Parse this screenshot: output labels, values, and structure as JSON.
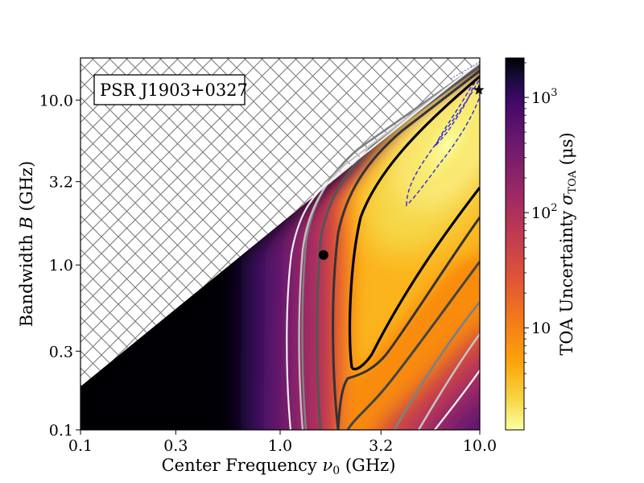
{
  "chart_data": {
    "type": "heatmap",
    "title": "",
    "annotation": "PSR J1903+0327",
    "xlabel": {
      "text": "Center Frequency ",
      "symbol": "ν",
      "sub": "0",
      "unit": " (GHz)"
    },
    "ylabel": {
      "text": "Bandwidth ",
      "symbol": "B",
      "unit": " (GHz)"
    },
    "xscale": "log",
    "yscale": "log",
    "xlim": [
      0.1,
      10.0
    ],
    "ylim": [
      0.1,
      18.0
    ],
    "xticks": [
      {
        "value": 0.1,
        "label": "0.1"
      },
      {
        "value": 0.3,
        "label": "0.3"
      },
      {
        "value": 1.0,
        "label": "1.0"
      },
      {
        "value": 3.2,
        "label": "3.2"
      },
      {
        "value": 10.0,
        "label": "10.0"
      }
    ],
    "yticks": [
      {
        "value": 0.1,
        "label": "0.1"
      },
      {
        "value": 0.3,
        "label": "0.3"
      },
      {
        "value": 1.0,
        "label": "1.0"
      },
      {
        "value": 3.2,
        "label": "3.2"
      },
      {
        "value": 10.0,
        "label": "10.0"
      }
    ],
    "colorbar": {
      "label": {
        "text": "TOA Uncertainty ",
        "symbol": "σ",
        "sub": "TOA",
        "unit": " (μs)"
      },
      "scale": "log",
      "colormap": "inferno_r",
      "range_us": [
        1.3,
        2200
      ],
      "ticks": [
        {
          "value": 10,
          "label": "10",
          "exp": ""
        },
        {
          "value": 100,
          "label": "10",
          "exp": "2"
        },
        {
          "value": 1000,
          "label": "10",
          "exp": "3"
        }
      ]
    },
    "excluded_region": "bandwidth exceeds twice the center frequency (B > 2ν0), hatched",
    "markers": [
      {
        "name": "current observation",
        "shape": "circle",
        "x": 1.65,
        "y": 1.15
      },
      {
        "name": "optimum",
        "shape": "star",
        "x": 9.9,
        "y": 11.5
      }
    ],
    "contours": [
      {
        "style": "dashed",
        "color": "#2a2adf",
        "label": "inner dashed contour"
      },
      {
        "style": "dashed",
        "color": "#2a2adf",
        "label": "outer dashed contour"
      },
      {
        "style": "solid",
        "color": "#000000",
        "label": "level 1"
      },
      {
        "style": "solid",
        "color": "#333333",
        "label": "level 2"
      },
      {
        "style": "solid",
        "color": "#444444",
        "label": "level 3"
      },
      {
        "style": "solid",
        "color": "#808080",
        "label": "level 4"
      },
      {
        "style": "solid",
        "color": "#c4c4c4",
        "label": "level 5"
      },
      {
        "style": "solid",
        "color": "#f2f2f2",
        "label": "level 6"
      }
    ]
  }
}
